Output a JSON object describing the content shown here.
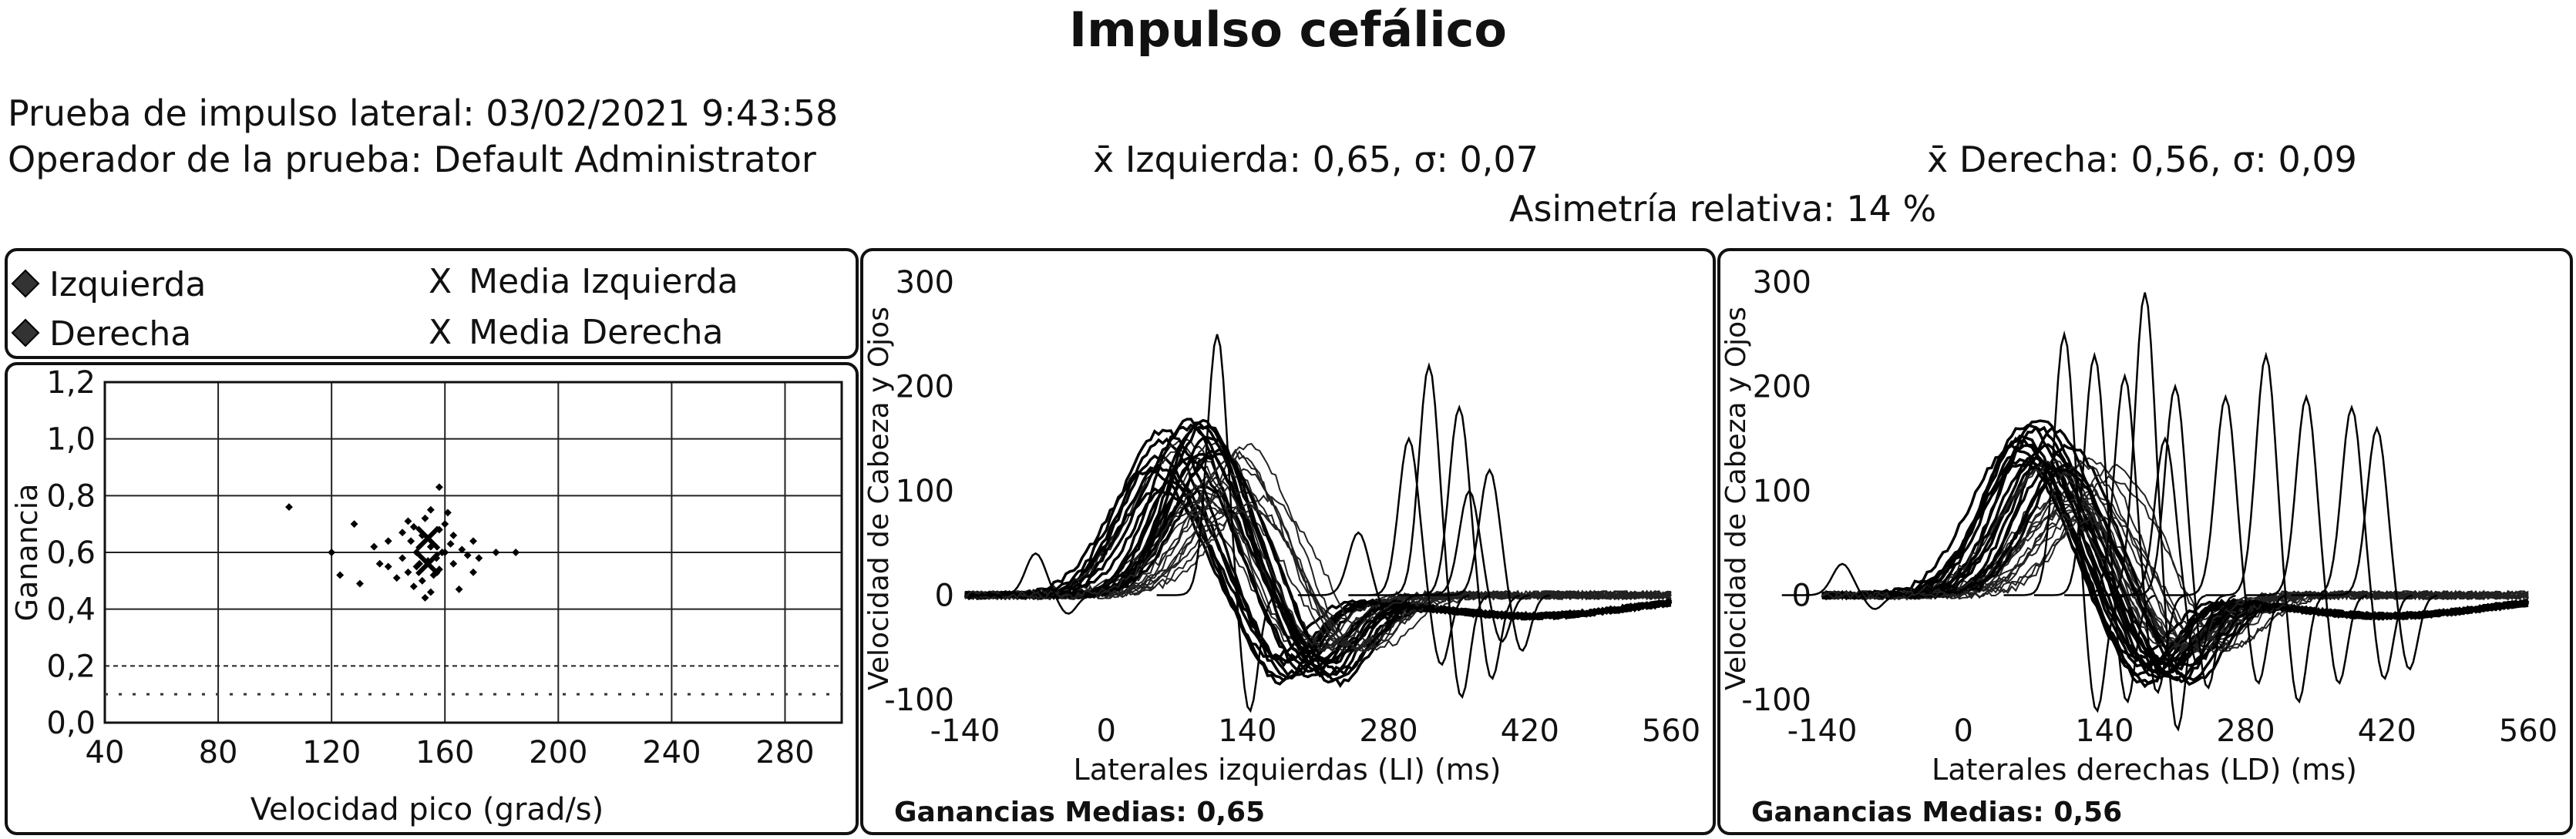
{
  "title": "Impulso cefálico",
  "info": {
    "test_line": "Prueba de impulso lateral: 03/02/2021 9:43:58",
    "operator_line": "Operador de la prueba: Default Administrator",
    "left_stats": "x̄ Izquierda: 0,65, σ: 0,07",
    "right_stats": "x̄ Derecha: 0,56, σ: 0,09",
    "asymmetry": "Asimetría relativa: 14 %"
  },
  "legend": {
    "left": "Izquierda",
    "right": "Derecha",
    "mean_left": "Media Izquierda",
    "mean_right": "Media Derecha",
    "x_symbol": "X"
  },
  "colors": {
    "ink": "#111111",
    "grid": "#222222",
    "background": "#ffffff"
  },
  "chart_data": [
    {
      "type": "scatter",
      "xlabel": "Velocidad pico (grad/s)",
      "ylabel": "Ganancia",
      "xlim": [
        40,
        300
      ],
      "ylim": [
        0,
        1.2
      ],
      "x_ticks": [
        "40",
        "80",
        "120",
        "160",
        "200",
        "240",
        "280"
      ],
      "y_ticks": [
        "0,0",
        "0,2",
        "0,4",
        "0,6",
        "0,8",
        "1,0",
        "1,2"
      ],
      "grid": true,
      "series": [
        {
          "name": "Izquierda",
          "points": [
            [
              148,
              0.64
            ],
            [
              152,
              0.66
            ],
            [
              155,
              0.62
            ],
            [
              158,
              0.68
            ],
            [
              150,
              0.6
            ],
            [
              160,
              0.7
            ],
            [
              145,
              0.67
            ],
            [
              162,
              0.63
            ],
            [
              153,
              0.72
            ],
            [
              157,
              0.58
            ],
            [
              149,
              0.69
            ],
            [
              163,
              0.66
            ],
            [
              140,
              0.64
            ],
            [
              166,
              0.61
            ],
            [
              155,
              0.75
            ],
            [
              151,
              0.56
            ],
            [
              159,
              0.6
            ],
            [
              147,
              0.71
            ],
            [
              161,
              0.74
            ],
            [
              135,
              0.62
            ],
            [
              170,
              0.64
            ],
            [
              158,
              0.83
            ],
            [
              105,
              0.76
            ],
            [
              128,
              0.7
            ],
            [
              172,
              0.58
            ]
          ]
        },
        {
          "name": "Derecha",
          "points": [
            [
              150,
              0.55
            ],
            [
              154,
              0.57
            ],
            [
              147,
              0.53
            ],
            [
              158,
              0.54
            ],
            [
              152,
              0.5
            ],
            [
              145,
              0.58
            ],
            [
              160,
              0.6
            ],
            [
              156,
              0.52
            ],
            [
              149,
              0.48
            ],
            [
              163,
              0.56
            ],
            [
              140,
              0.55
            ],
            [
              168,
              0.59
            ],
            [
              143,
              0.51
            ],
            [
              155,
              0.46
            ],
            [
              123,
              0.52
            ],
            [
              130,
              0.49
            ],
            [
              137,
              0.56
            ],
            [
              178,
              0.6
            ],
            [
              185,
              0.6
            ],
            [
              165,
              0.47
            ],
            [
              120,
              0.6
            ],
            [
              153,
              0.44
            ],
            [
              170,
              0.53
            ]
          ]
        },
        {
          "name": "Media Izquierda",
          "points": [
            [
              154,
              0.65
            ]
          ]
        },
        {
          "name": "Media Derecha",
          "points": [
            [
              154,
              0.56
            ]
          ]
        }
      ]
    },
    {
      "type": "line",
      "xlabel": "Laterales izquierdas (LI) (ms)",
      "ylabel": "Velocidad de Cabeza y Ojos",
      "xlim": [
        -140,
        560
      ],
      "ylim": [
        -100,
        300
      ],
      "x_ticks": [
        "-140",
        "0",
        "140",
        "280",
        "420",
        "560"
      ],
      "y_ticks": [
        "-100",
        "0",
        "100",
        "200",
        "300"
      ],
      "footer": "Ganancias Medias: 0,65",
      "head_peak_range": [
        100,
        170
      ],
      "eye_peak_range": [
        80,
        160
      ],
      "trace_count": 18,
      "saccade_peaks": [
        [
          -70,
          40
        ],
        [
          110,
          250
        ],
        [
          320,
          220
        ],
        [
          350,
          180
        ],
        [
          300,
          150
        ],
        [
          360,
          100
        ],
        [
          380,
          120
        ],
        [
          250,
          60
        ]
      ]
    },
    {
      "type": "line",
      "xlabel": "Laterales derechas (LD) (ms)",
      "ylabel": "Velocidad de Cabeza y Ojos",
      "xlim": [
        -140,
        560
      ],
      "ylim": [
        -100,
        300
      ],
      "x_ticks": [
        "-140",
        "0",
        "140",
        "280",
        "420",
        "560"
      ],
      "y_ticks": [
        "-100",
        "0",
        "100",
        "200",
        "300"
      ],
      "footer": "Ganancias Medias: 0,56",
      "head_peak_range": [
        120,
        175
      ],
      "eye_peak_range": [
        70,
        130
      ],
      "trace_count": 18,
      "saccade_peaks": [
        [
          -120,
          30
        ],
        [
          100,
          250
        ],
        [
          130,
          230
        ],
        [
          160,
          210
        ],
        [
          180,
          290
        ],
        [
          210,
          200
        ],
        [
          300,
          230
        ],
        [
          340,
          190
        ],
        [
          385,
          180
        ],
        [
          410,
          160
        ],
        [
          200,
          150
        ],
        [
          260,
          190
        ]
      ]
    }
  ]
}
